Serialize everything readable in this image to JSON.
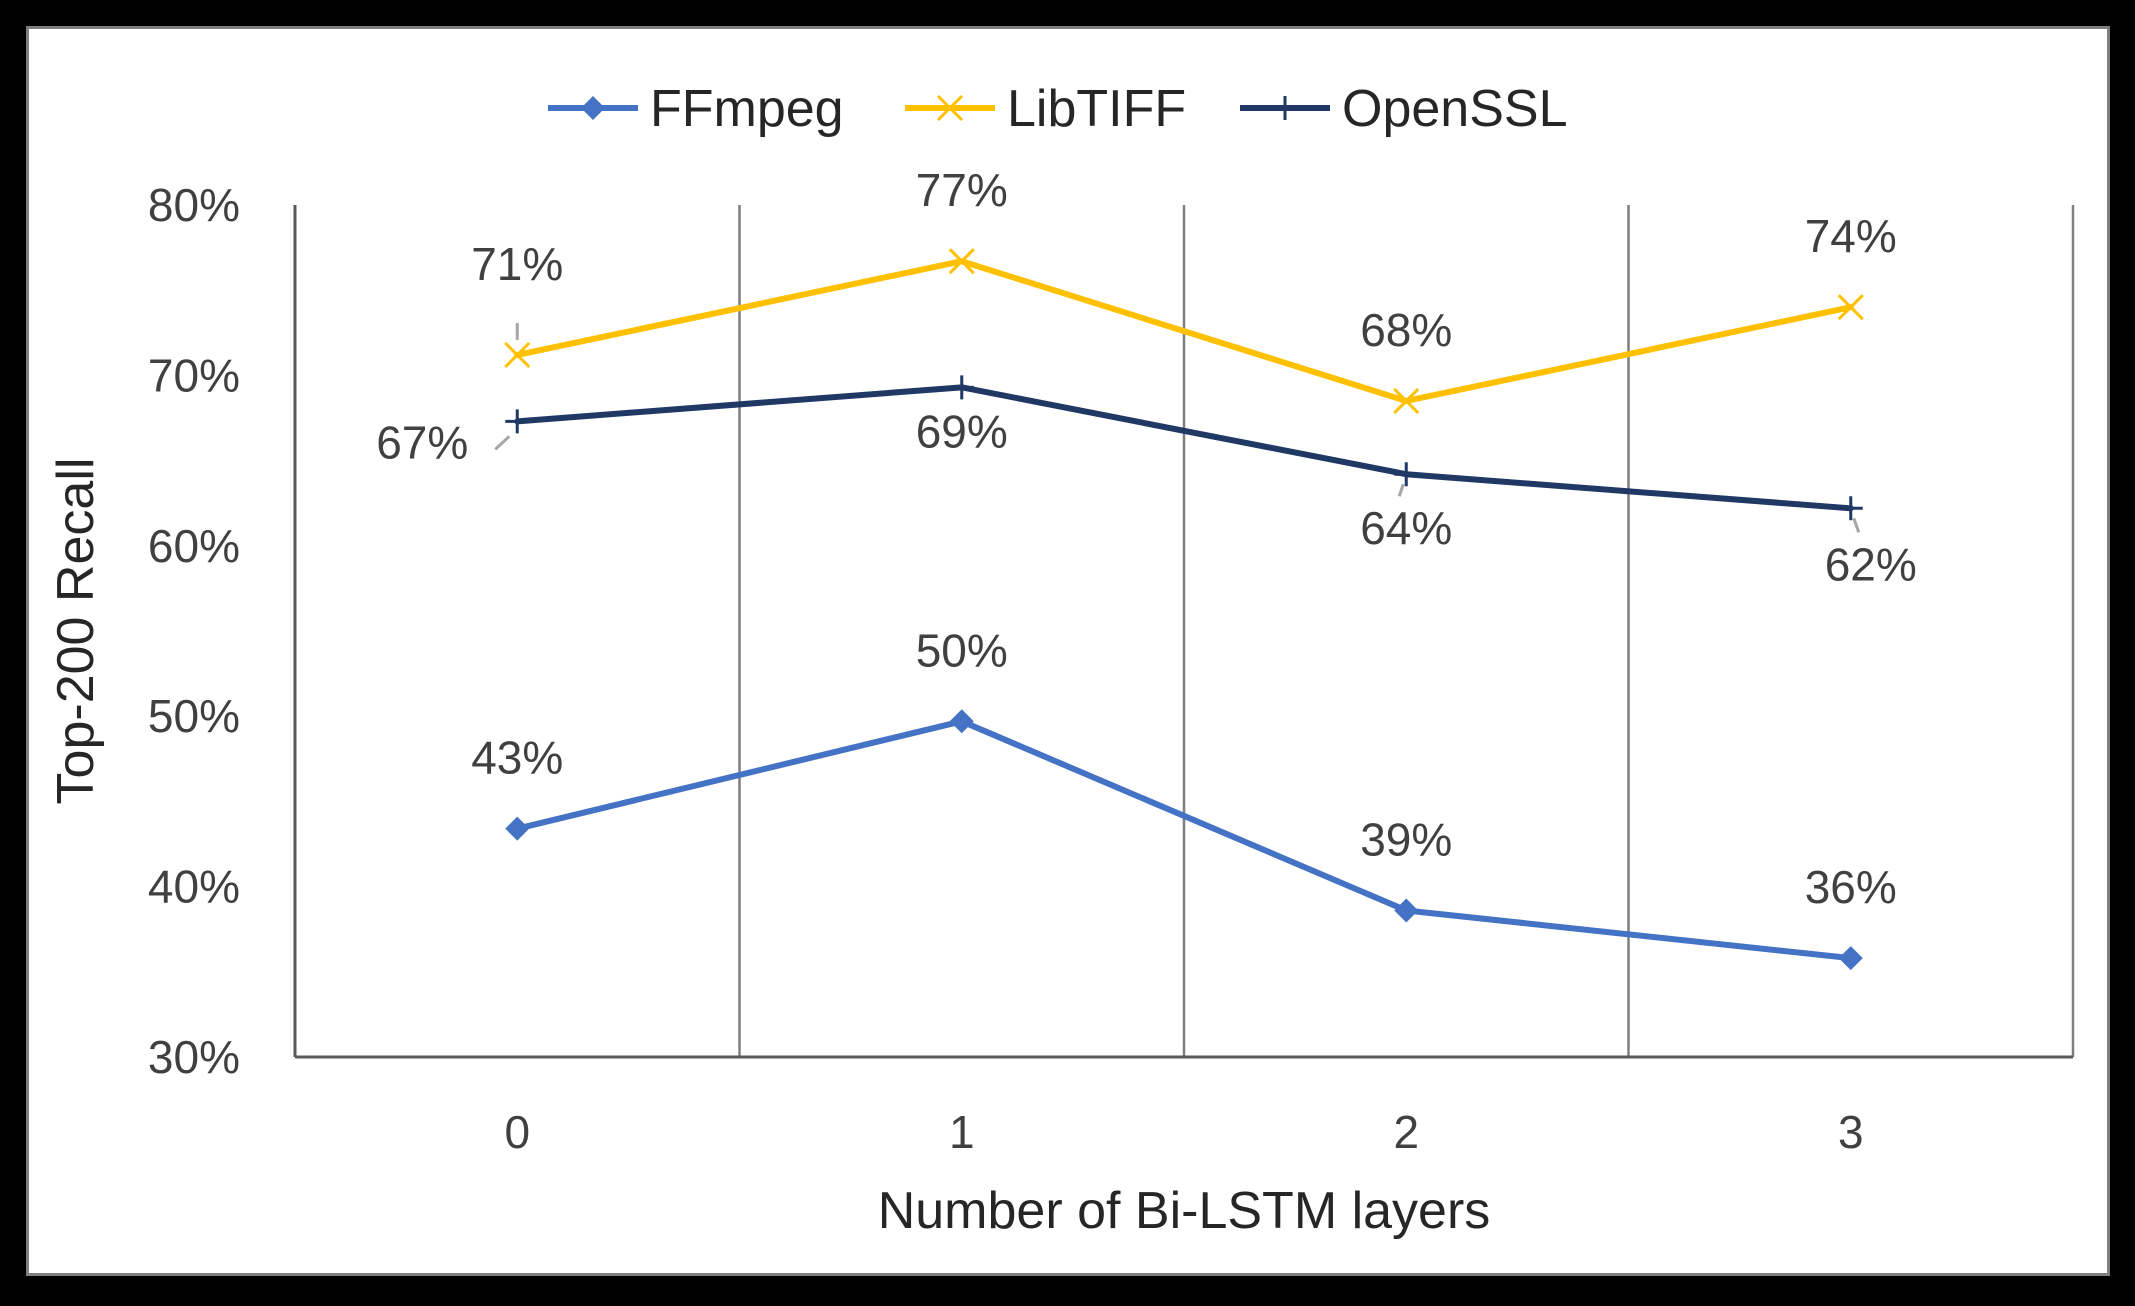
{
  "chart_data": {
    "type": "line",
    "xlabel": "Number of Bi-LSTM layers",
    "ylabel": "Top-200 Recall",
    "categories": [
      "0",
      "1",
      "2",
      "3"
    ],
    "ylim": [
      0.3,
      0.8
    ],
    "yticks": [
      0.3,
      0.4,
      0.5,
      0.6,
      0.7,
      0.8
    ],
    "ytick_labels": [
      "30%",
      "40%",
      "50%",
      "60%",
      "70%",
      "80%"
    ],
    "legend_position": "top-center",
    "vertical_gridlines": true,
    "series": [
      {
        "name": "FFmpeg",
        "color": "#4472c4",
        "marker": "diamond",
        "values": [
          0.434,
          0.497,
          0.386,
          0.358
        ],
        "labels": [
          "43%",
          "50%",
          "39%",
          "36%"
        ]
      },
      {
        "name": "LibTIFF",
        "color": "#ffc000",
        "marker": "x",
        "values": [
          0.712,
          0.767,
          0.685,
          0.74
        ],
        "labels": [
          "71%",
          "77%",
          "68%",
          "74%"
        ]
      },
      {
        "name": "OpenSSL",
        "color": "#1f3864",
        "marker": "plus",
        "values": [
          0.673,
          0.693,
          0.642,
          0.622
        ],
        "labels": [
          "67%",
          "69%",
          "64%",
          "62%"
        ]
      }
    ]
  }
}
